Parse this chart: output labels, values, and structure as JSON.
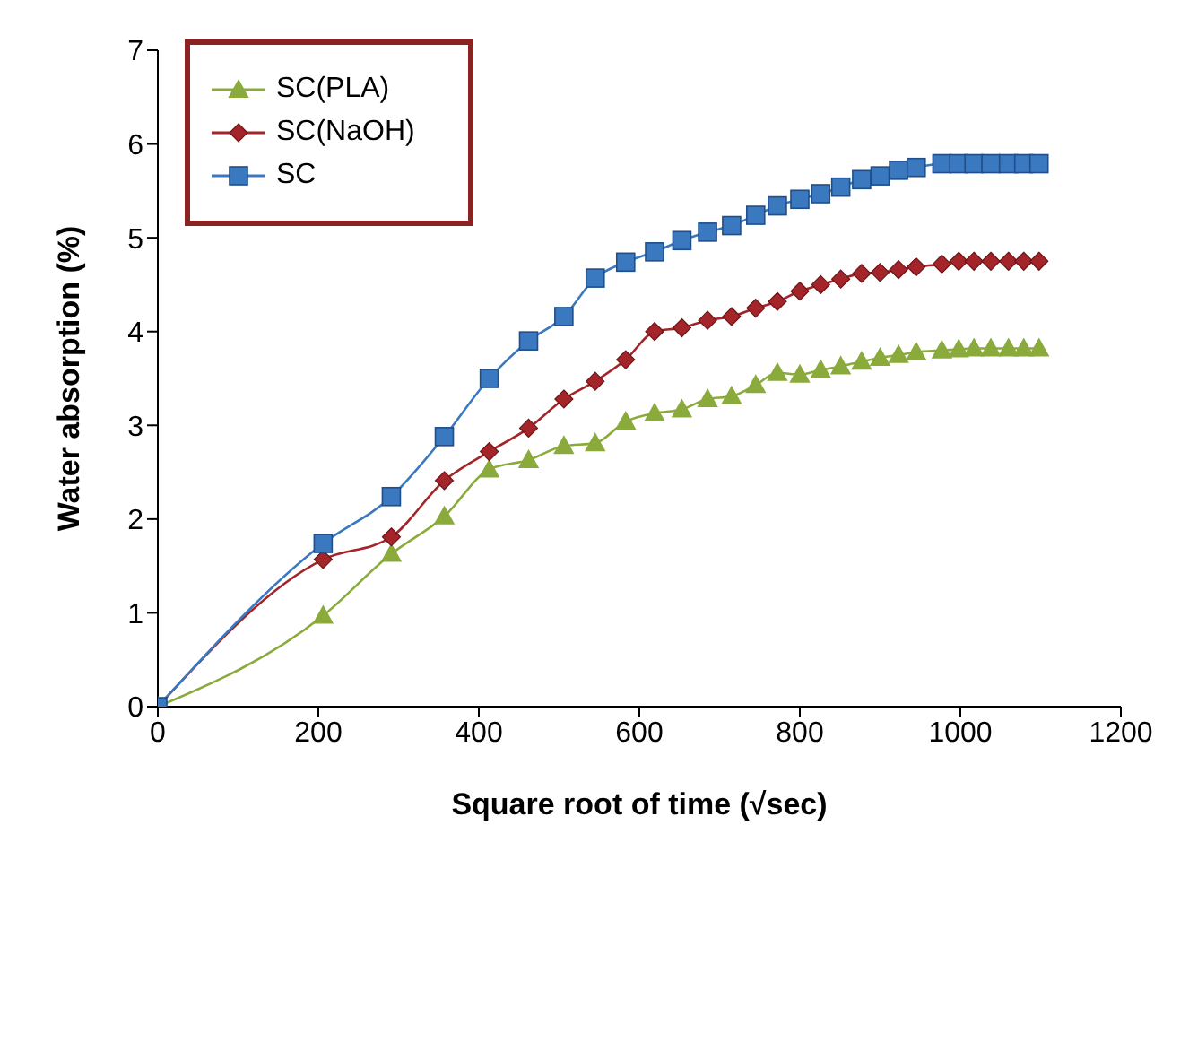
{
  "chart_data": {
    "type": "line",
    "xlabel": "Square root of time (√sec)",
    "ylabel": "Water absorption (%)",
    "x": [
      0,
      206,
      291,
      357,
      413,
      462,
      506,
      545,
      583,
      619,
      653,
      685,
      715,
      745,
      772,
      800,
      826,
      851,
      877,
      900,
      923,
      945,
      977,
      998,
      1017,
      1038,
      1060,
      1079,
      1098
    ],
    "series": [
      {
        "name": "SC(PLA)",
        "color": "#8aab3c",
        "marker": "triangle",
        "values": [
          0,
          0.97,
          1.63,
          2.03,
          2.53,
          2.63,
          2.78,
          2.81,
          3.04,
          3.13,
          3.17,
          3.28,
          3.31,
          3.43,
          3.56,
          3.54,
          3.59,
          3.63,
          3.68,
          3.72,
          3.75,
          3.78,
          3.8,
          3.81,
          3.82,
          3.82,
          3.82,
          3.82,
          3.82
        ]
      },
      {
        "name": "SC(NaOH)",
        "color": "#a3252a",
        "marker": "diamond",
        "values": [
          0,
          1.57,
          1.81,
          2.41,
          2.72,
          2.97,
          3.28,
          3.47,
          3.7,
          4.0,
          4.04,
          4.12,
          4.16,
          4.25,
          4.32,
          4.43,
          4.5,
          4.56,
          4.62,
          4.63,
          4.66,
          4.69,
          4.72,
          4.75,
          4.75,
          4.75,
          4.75,
          4.75,
          4.75
        ]
      },
      {
        "name": "SC",
        "color": "#3a78c0",
        "marker": "square",
        "values": [
          0,
          1.74,
          2.24,
          2.88,
          3.5,
          3.9,
          4.16,
          4.57,
          4.74,
          4.85,
          4.97,
          5.06,
          5.13,
          5.24,
          5.34,
          5.41,
          5.47,
          5.54,
          5.62,
          5.66,
          5.72,
          5.75,
          5.79,
          5.79,
          5.79,
          5.79,
          5.79,
          5.79,
          5.79
        ]
      }
    ],
    "xlim": [
      0,
      1200
    ],
    "xticks": [
      0,
      200,
      400,
      600,
      800,
      1000,
      1200
    ],
    "ylim": [
      0,
      7
    ],
    "yticks": [
      0,
      1,
      2,
      3,
      4,
      5,
      6,
      7
    ],
    "grid": false,
    "legend": "top left",
    "line_style": "solid"
  }
}
